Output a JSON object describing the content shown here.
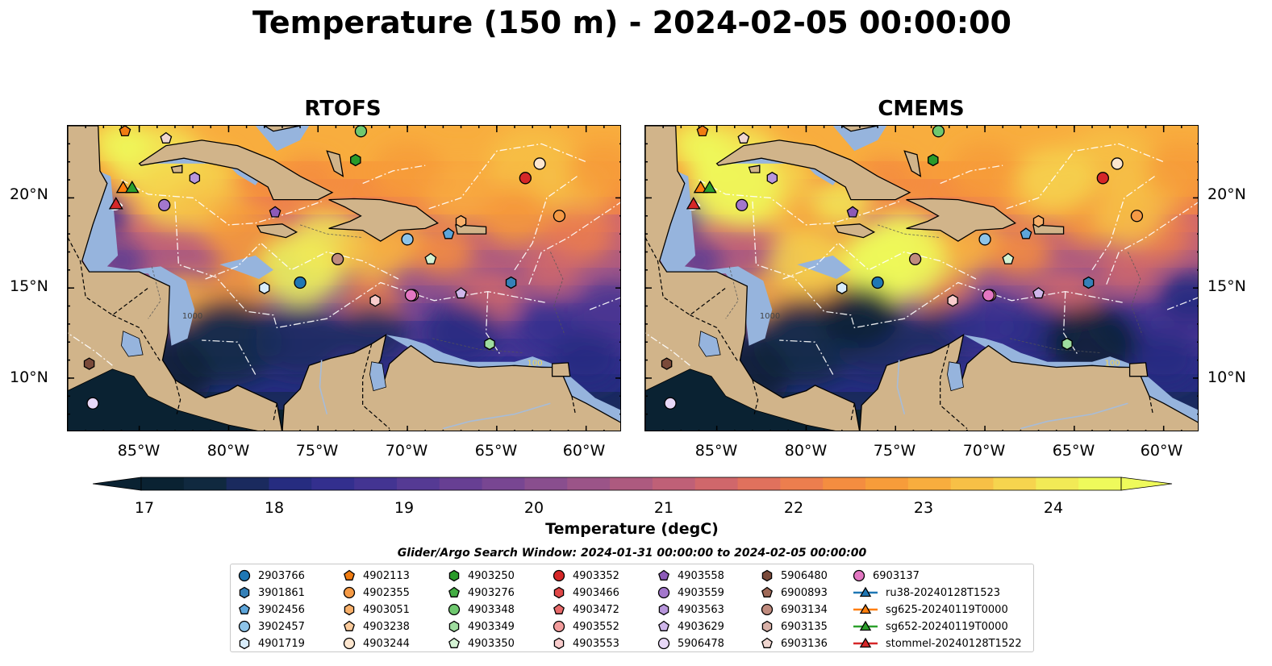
{
  "title": "Temperature (150 m) - 2024-02-05 00:00:00",
  "panels": [
    {
      "title": "RTOFS"
    },
    {
      "title": "CMEMS"
    }
  ],
  "axes": {
    "lat_labels": [
      "20°N",
      "15°N",
      "10°N"
    ],
    "lon_labels": [
      "85°W",
      "80°W",
      "75°W",
      "70°W",
      "65°W",
      "60°W"
    ],
    "lon_range": [
      -89,
      -58
    ],
    "lat_range": [
      7,
      24
    ]
  },
  "contour_labels": [
    "1000",
    "100"
  ],
  "colorbar": {
    "label": "Temperature (degC)",
    "ticks": [
      "17",
      "18",
      "19",
      "20",
      "21",
      "22",
      "23",
      "24"
    ],
    "range": [
      16.75,
      24.75
    ],
    "colors": [
      "#0a2232",
      "#10293f",
      "#1a2a5e",
      "#262c80",
      "#332f8e",
      "#433492",
      "#553a94",
      "#673f93",
      "#784692",
      "#894e8e",
      "#9b5488",
      "#ad5a7f",
      "#bf6077",
      "#d0676b",
      "#e0715d",
      "#ec7e4e",
      "#f48d40",
      "#f79c3a",
      "#f8ad3e",
      "#f7c046",
      "#f6d44e",
      "#f2ea56",
      "#eefa5b"
    ],
    "extend": "both"
  },
  "search_window": "Glider/Argo Search Window: 2024-01-31 00:00:00 to 2024-02-05 00:00:00",
  "legend": {
    "columns": [
      [
        {
          "label": "2903766",
          "marker": "circle",
          "color": "#1f77b4"
        },
        {
          "label": "3901861",
          "marker": "hexagon",
          "color": "#3581b8"
        },
        {
          "label": "3902456",
          "marker": "pentagon",
          "color": "#5da5da"
        },
        {
          "label": "3902457",
          "marker": "circle",
          "color": "#8ec4e8"
        },
        {
          "label": "4901719",
          "marker": "hexagon",
          "color": "#d8ecfa"
        }
      ],
      [
        {
          "label": "4902113",
          "marker": "pentagon",
          "color": "#f07c12"
        },
        {
          "label": "4902355",
          "marker": "circle",
          "color": "#f59a45"
        },
        {
          "label": "4903051",
          "marker": "hexagon",
          "color": "#f8b06a"
        },
        {
          "label": "4903238",
          "marker": "pentagon",
          "color": "#fbcb9c"
        },
        {
          "label": "4903244",
          "marker": "circle",
          "color": "#fde6cf"
        }
      ],
      [
        {
          "label": "4903250",
          "marker": "hexagon",
          "color": "#2a9a2a"
        },
        {
          "label": "4903276",
          "marker": "pentagon",
          "color": "#43ad43"
        },
        {
          "label": "4903348",
          "marker": "circle",
          "color": "#6fc86f"
        },
        {
          "label": "4903349",
          "marker": "hexagon",
          "color": "#9fdd9f"
        },
        {
          "label": "4903350",
          "marker": "pentagon",
          "color": "#d3f2d3"
        }
      ],
      [
        {
          "label": "4903352",
          "marker": "circle",
          "color": "#d62728"
        },
        {
          "label": "4903466",
          "marker": "hexagon",
          "color": "#e04848"
        },
        {
          "label": "4903472",
          "marker": "pentagon",
          "color": "#e86a6a"
        },
        {
          "label": "4903552",
          "marker": "circle",
          "color": "#f29c9c"
        },
        {
          "label": "4903553",
          "marker": "hexagon",
          "color": "#f9cccc"
        }
      ],
      [
        {
          "label": "4903558",
          "marker": "pentagon",
          "color": "#8c5ab8"
        },
        {
          "label": "4903559",
          "marker": "circle",
          "color": "#a377cc"
        },
        {
          "label": "4903563",
          "marker": "hexagon",
          "color": "#b896dc"
        },
        {
          "label": "4903629",
          "marker": "pentagon",
          "color": "#cfb6ea"
        },
        {
          "label": "5906478",
          "marker": "circle",
          "color": "#e8d8f7"
        }
      ],
      [
        {
          "label": "5906480",
          "marker": "hexagon",
          "color": "#7a4a3a"
        },
        {
          "label": "6900893",
          "marker": "pentagon",
          "color": "#a06a58"
        },
        {
          "label": "6903134",
          "marker": "circle",
          "color": "#c08b7e"
        },
        {
          "label": "6903135",
          "marker": "hexagon",
          "color": "#d9b1a8"
        },
        {
          "label": "6903136",
          "marker": "pentagon",
          "color": "#f0d6d0"
        }
      ],
      [
        {
          "label": "6903137",
          "marker": "circle",
          "color": "#e377c2"
        },
        {
          "label": "ru38-20240128T1523",
          "marker": "triangle-line",
          "color": "#1f77b4"
        },
        {
          "label": "sg625-20240119T0000",
          "marker": "triangle-line",
          "color": "#ff7f0e"
        },
        {
          "label": "sg652-20240119T0000",
          "marker": "triangle-line",
          "color": "#2ca02c"
        },
        {
          "label": "stommel-20240128T1522",
          "marker": "triangle-line",
          "color": "#d62728"
        }
      ]
    ]
  },
  "platform_positions": [
    {
      "id": "2903766",
      "lon": -76.0,
      "lat": 15.3
    },
    {
      "id": "3901861",
      "lon": -64.2,
      "lat": 15.3
    },
    {
      "id": "3902456",
      "lon": -67.7,
      "lat": 18.0
    },
    {
      "id": "3902457",
      "lon": -70.0,
      "lat": 17.7
    },
    {
      "id": "4901719",
      "lon": -78.0,
      "lat": 15.0
    },
    {
      "id": "4902113",
      "lon": -85.8,
      "lat": 23.7
    },
    {
      "id": "4902355",
      "lon": -61.5,
      "lat": 19.0
    },
    {
      "id": "4903051",
      "lon": -67.0,
      "lat": 18.7
    },
    {
      "id": "4903244",
      "lon": -62.6,
      "lat": 21.9
    },
    {
      "id": "4903250",
      "lon": -72.9,
      "lat": 22.1
    },
    {
      "id": "4903348",
      "lon": -72.6,
      "lat": 23.7
    },
    {
      "id": "4903349",
      "lon": -65.4,
      "lat": 11.9
    },
    {
      "id": "4903350",
      "lon": -68.7,
      "lat": 16.6
    },
    {
      "id": "4903352",
      "lon": -63.4,
      "lat": 21.1
    },
    {
      "id": "4903552",
      "lon": -69.7,
      "lat": 14.6
    },
    {
      "id": "4903553",
      "lon": -71.8,
      "lat": 14.3
    },
    {
      "id": "4903558",
      "lon": -77.4,
      "lat": 19.2
    },
    {
      "id": "4903559",
      "lon": -83.6,
      "lat": 19.6
    },
    {
      "id": "4903563",
      "lon": -81.9,
      "lat": 21.1
    },
    {
      "id": "4903629",
      "lon": -67.0,
      "lat": 14.7
    },
    {
      "id": "5906478",
      "lon": -87.6,
      "lat": 8.6
    },
    {
      "id": "5906480",
      "lon": -87.8,
      "lat": 10.8
    },
    {
      "id": "6903134",
      "lon": -73.9,
      "lat": 16.6
    },
    {
      "id": "6903136",
      "lon": -83.5,
      "lat": 23.3
    },
    {
      "id": "6903137",
      "lon": -69.8,
      "lat": 14.6
    },
    {
      "id": "sg625-20240119T0000",
      "lon": -85.9,
      "lat": 20.5
    },
    {
      "id": "sg652-20240119T0000",
      "lon": -85.4,
      "lat": 20.5
    },
    {
      "id": "stommel-20240128T1522",
      "lon": -86.3,
      "lat": 19.6
    }
  ]
}
